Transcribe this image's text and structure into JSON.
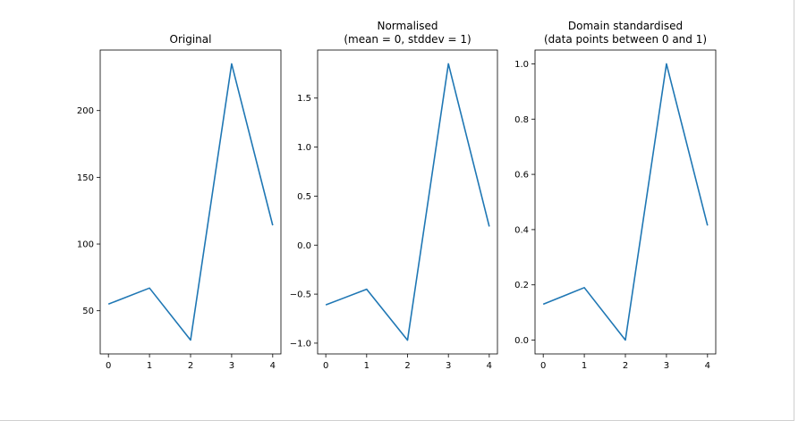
{
  "chart_data": [
    {
      "type": "line",
      "title": [
        "Original"
      ],
      "x": [
        0,
        1,
        2,
        3,
        4
      ],
      "series": [
        {
          "values": [
            55,
            67,
            28,
            235,
            114
          ]
        }
      ],
      "xticks": [
        "0",
        "1",
        "2",
        "3",
        "4"
      ],
      "yticks": [
        "50",
        "100",
        "150",
        "200"
      ],
      "xlim": [
        -0.2,
        4.2
      ],
      "ylim": [
        17.65,
        245.35
      ],
      "line_color": "#1f77b4",
      "grid": false
    },
    {
      "type": "line",
      "title": [
        "Normalised",
        "(mean = 0, stddev = 1)"
      ],
      "x": [
        0,
        1,
        2,
        3,
        4
      ],
      "series": [
        {
          "values": [
            -0.61,
            -0.45,
            -0.97,
            1.85,
            0.19
          ]
        }
      ],
      "xticks": [
        "0",
        "1",
        "2",
        "3",
        "4"
      ],
      "yticks": [
        "−1.0",
        "−0.5",
        "0.0",
        "0.5",
        "1.0",
        "1.5"
      ],
      "xlim": [
        -0.2,
        4.2
      ],
      "ylim": [
        -1.11,
        1.99
      ],
      "line_color": "#1f77b4",
      "grid": false
    },
    {
      "type": "line",
      "title": [
        "Domain standardised",
        "(data points between 0 and 1)"
      ],
      "x": [
        0,
        1,
        2,
        3,
        4
      ],
      "series": [
        {
          "values": [
            0.13,
            0.19,
            0.0,
            1.0,
            0.415
          ]
        }
      ],
      "xticks": [
        "0",
        "1",
        "2",
        "3",
        "4"
      ],
      "yticks": [
        "0.0",
        "0.2",
        "0.4",
        "0.6",
        "0.8",
        "1.0"
      ],
      "xlim": [
        -0.2,
        4.2
      ],
      "ylim": [
        -0.05,
        1.05
      ],
      "line_color": "#1f77b4",
      "grid": false
    }
  ]
}
